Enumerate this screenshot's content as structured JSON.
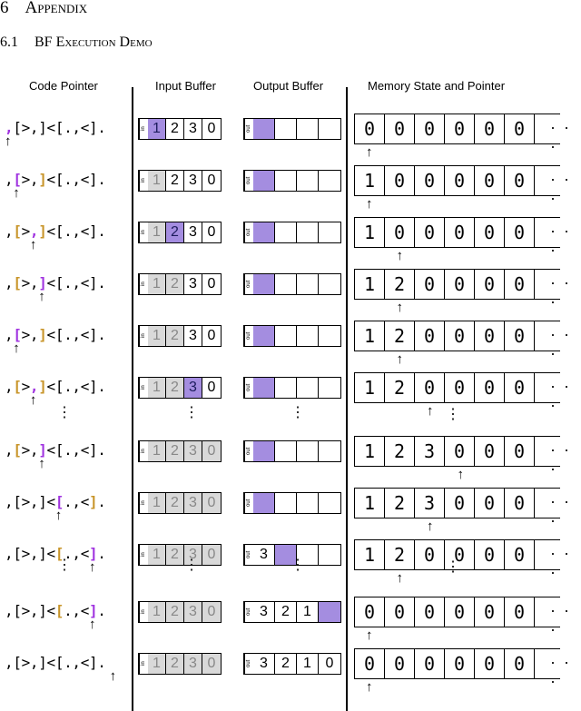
{
  "section": {
    "num": "6",
    "title": "Appendix"
  },
  "subsection": {
    "num": "6.1",
    "title": "BF Execution Demo"
  },
  "headers": {
    "code": "Code Pointer",
    "input": "Input Buffer",
    "output": "Output Buffer",
    "memory": "Memory State and Pointer"
  },
  "program": ",[>,]<[.,<].",
  "labels": {
    "in": "in",
    "out": "out",
    "ellipsis": "· · ·",
    "vdots": "⋮"
  },
  "rows": [
    {
      "code_hl": 0,
      "brackets": [],
      "in": [
        "1",
        "2",
        "3",
        "0"
      ],
      "in_used": 0,
      "in_cur": 0,
      "out": [],
      "out_hl": 0,
      "mem": [
        "0",
        "0",
        "0",
        "0",
        "0",
        "0"
      ],
      "mem_ptr": 0
    },
    {
      "code_hl": 1,
      "brackets": [
        4
      ],
      "in": [
        "1",
        "2",
        "3",
        "0"
      ],
      "in_used": 1,
      "in_cur": -1,
      "out": [],
      "out_hl": 0,
      "mem": [
        "1",
        "0",
        "0",
        "0",
        "0",
        "0"
      ],
      "mem_ptr": 0
    },
    {
      "code_hl": 3,
      "brackets": [
        1,
        4
      ],
      "in": [
        "1",
        "2",
        "3",
        "0"
      ],
      "in_used": 1,
      "in_cur": 1,
      "out": [],
      "out_hl": 0,
      "mem": [
        "1",
        "0",
        "0",
        "0",
        "0",
        "0"
      ],
      "mem_ptr": 1
    },
    {
      "code_hl": 4,
      "brackets": [
        1
      ],
      "in": [
        "1",
        "2",
        "3",
        "0"
      ],
      "in_used": 2,
      "in_cur": -1,
      "out": [],
      "out_hl": 0,
      "mem": [
        "1",
        "2",
        "0",
        "0",
        "0",
        "0"
      ],
      "mem_ptr": 1
    },
    {
      "code_hl": 1,
      "brackets": [
        4
      ],
      "in": [
        "1",
        "2",
        "3",
        "0"
      ],
      "in_used": 2,
      "in_cur": -1,
      "out": [],
      "out_hl": 0,
      "mem": [
        "1",
        "2",
        "0",
        "0",
        "0",
        "0"
      ],
      "mem_ptr": 1
    },
    {
      "code_hl": 3,
      "brackets": [
        1,
        4
      ],
      "in": [
        "1",
        "2",
        "3",
        "0"
      ],
      "in_used": 2,
      "in_cur": 2,
      "out": [],
      "out_hl": 0,
      "mem": [
        "1",
        "2",
        "0",
        "0",
        "0",
        "0"
      ],
      "mem_ptr": 2
    },
    {
      "code_hl": 4,
      "brackets": [
        1
      ],
      "in": [
        "1",
        "2",
        "3",
        "0"
      ],
      "in_used": 4,
      "in_cur": -1,
      "out": [],
      "out_hl": 0,
      "mem": [
        "1",
        "2",
        "3",
        "0",
        "0",
        "0"
      ],
      "mem_ptr": 3
    },
    {
      "code_hl": 6,
      "brackets": [
        10
      ],
      "in": [
        "1",
        "2",
        "3",
        "0"
      ],
      "in_used": 4,
      "in_cur": -1,
      "out": [],
      "out_hl": 0,
      "mem": [
        "1",
        "2",
        "3",
        "0",
        "0",
        "0"
      ],
      "mem_ptr": 2
    },
    {
      "code_hl": 10,
      "brackets": [
        6
      ],
      "in": [
        "1",
        "2",
        "3",
        "0"
      ],
      "in_used": 4,
      "in_cur": -1,
      "out": [
        "3"
      ],
      "out_hl": 1,
      "mem": [
        "1",
        "2",
        "0",
        "0",
        "0",
        "0"
      ],
      "mem_ptr": 1
    },
    {
      "code_hl": 10,
      "brackets": [
        6
      ],
      "in": [
        "1",
        "2",
        "3",
        "0"
      ],
      "in_used": 4,
      "in_cur": -1,
      "out": [
        "3",
        "2",
        "1"
      ],
      "out_hl": 3,
      "mem": [
        "0",
        "0",
        "0",
        "0",
        "0",
        "0"
      ],
      "mem_ptr": 0
    },
    {
      "code_hl": -1,
      "brackets": [],
      "in": [
        "1",
        "2",
        "3",
        "0"
      ],
      "in_used": 4,
      "in_cur": -1,
      "out": [
        "3",
        "2",
        "1",
        "0"
      ],
      "out_hl": -1,
      "mem": [
        "0",
        "0",
        "0",
        "0",
        "0",
        "0"
      ],
      "mem_ptr": 0
    }
  ]
}
